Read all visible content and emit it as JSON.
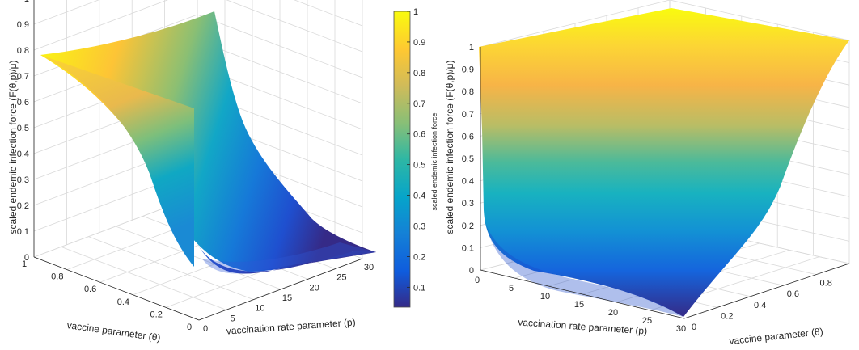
{
  "chart_data": [
    {
      "type": "surface",
      "view": "left",
      "xlabel": "vaccination rate parameter (p)",
      "ylabel": "vaccine parameter (θ)",
      "zlabel": "scaled endemic infection force (F(θ,p)/μ)",
      "xlim": [
        0,
        30
      ],
      "ylim": [
        0,
        1
      ],
      "zlim": [
        0,
        1
      ],
      "xticks": [
        "0",
        "5",
        "10",
        "15",
        "20",
        "25",
        "30"
      ],
      "yticks": [
        "0",
        "0.2",
        "0.4",
        "0.6",
        "0.8",
        "1"
      ],
      "zticks": [
        "0",
        "0.1",
        "0.2",
        "0.3",
        "0.4",
        "0.5",
        "0.6",
        "0.7",
        "0.8",
        "0.9",
        "1"
      ],
      "grid": true,
      "colormap": "parula"
    },
    {
      "type": "surface",
      "view": "right",
      "xlabel": "vaccination rate parameter (p)",
      "ylabel": "vaccine parameter (θ)",
      "zlabel": "scaled endemic infection force (F(θ,p)/μ)",
      "xlim": [
        0,
        30
      ],
      "ylim": [
        0,
        1
      ],
      "zlim": [
        0,
        1
      ],
      "xticks": [
        "0",
        "5",
        "10",
        "15",
        "20",
        "25",
        "30"
      ],
      "yticks": [
        "0",
        "0.2",
        "0.4",
        "0.6",
        "0.8"
      ],
      "zticks": [
        "0",
        "0.1",
        "0.2",
        "0.3",
        "0.4",
        "0.5",
        "0.6",
        "0.7",
        "0.8",
        "0.9",
        "1"
      ],
      "grid": true,
      "colormap": "parula"
    }
  ],
  "colorbar": {
    "label": "scaled endemic infection force",
    "ticks": [
      "0.1",
      "0.2",
      "0.3",
      "0.4",
      "0.5",
      "0.6",
      "0.7",
      "0.8",
      "0.9",
      "1"
    ],
    "colors": [
      "#352a87",
      "#0f5cdd",
      "#1481d6",
      "#06a4ca",
      "#2eb7a4",
      "#87bf77",
      "#d1bb59",
      "#fec832",
      "#f9fb0e"
    ]
  }
}
